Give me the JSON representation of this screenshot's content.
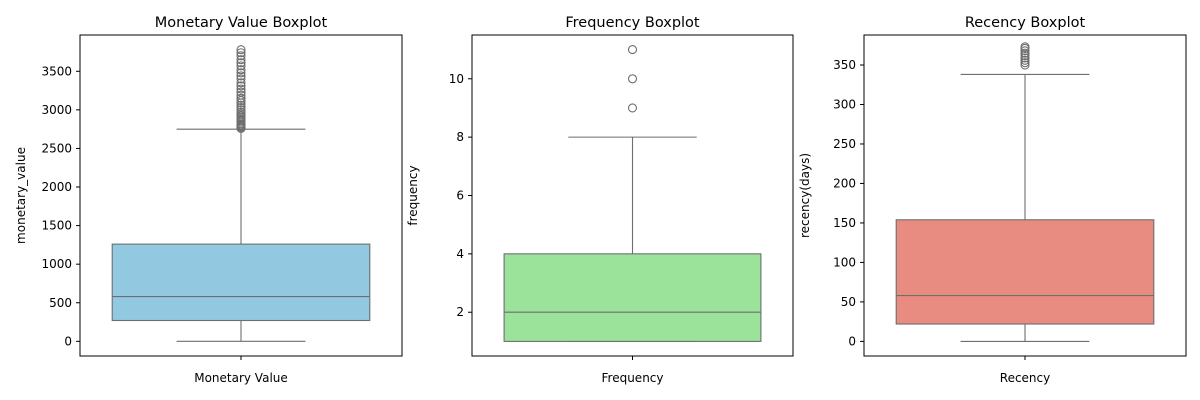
{
  "colors": {
    "line": "#6e6e6e",
    "monetary": "#92c9e0",
    "frequency": "#9be39b",
    "recency": "#e88c82"
  },
  "chart_data": [
    {
      "type": "box",
      "title": "Monetary Value Boxplot",
      "xlabel": "Monetary Value",
      "ylabel": "monetary_value",
      "ylim": [
        -190,
        3970
      ],
      "yticks": [
        0,
        500,
        1000,
        1500,
        2000,
        2500,
        3000,
        3500
      ],
      "color_key": "monetary",
      "box": {
        "whisker_low": 0,
        "q1": 270,
        "median": 580,
        "q3": 1260,
        "whisker_high": 2750
      },
      "outliers": [
        2760,
        2775,
        2790,
        2805,
        2820,
        2840,
        2860,
        2880,
        2900,
        2920,
        2945,
        2970,
        3000,
        3030,
        3060,
        3090,
        3120,
        3150,
        3190,
        3230,
        3270,
        3310,
        3350,
        3400,
        3440,
        3480,
        3520,
        3570,
        3610,
        3650,
        3700,
        3740,
        3780
      ]
    },
    {
      "type": "box",
      "title": "Frequency Boxplot",
      "xlabel": "Frequency",
      "ylabel": "frequency",
      "ylim": [
        0.5,
        11.5
      ],
      "yticks": [
        2,
        4,
        6,
        8,
        10
      ],
      "color_key": "frequency",
      "box": {
        "whisker_low": 1,
        "q1": 1,
        "median": 2,
        "q3": 4,
        "whisker_high": 8
      },
      "outliers": [
        9,
        10,
        11
      ]
    },
    {
      "type": "box",
      "title": "Recency Boxplot",
      "xlabel": "Recency",
      "ylabel": "recency(days)",
      "ylim": [
        -18.5,
        388
      ],
      "yticks": [
        0,
        50,
        100,
        150,
        200,
        250,
        300,
        350
      ],
      "color_key": "recency",
      "box": {
        "whisker_low": 0,
        "q1": 22,
        "median": 58,
        "q3": 154,
        "whisker_high": 338
      },
      "outliers": [
        350,
        353,
        356,
        359,
        362,
        365,
        368,
        371,
        373
      ]
    }
  ]
}
